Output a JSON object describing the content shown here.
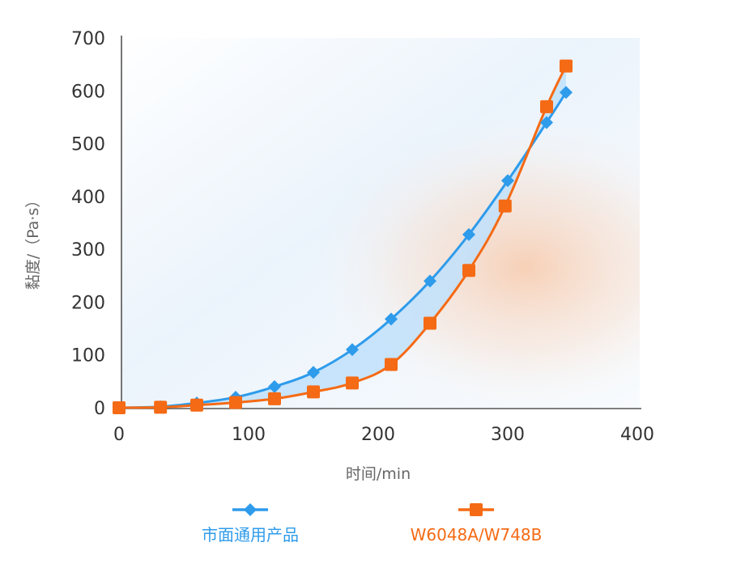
{
  "chart_data": {
    "type": "line",
    "xlabel": "时间/min",
    "ylabel": "黏度/（Pa·s）",
    "xlim": [
      0,
      400
    ],
    "ylim": [
      0,
      700
    ],
    "xticks": [
      0,
      100,
      200,
      300,
      400
    ],
    "yticks": [
      0,
      100,
      200,
      300,
      400,
      500,
      600,
      700
    ],
    "grid": false,
    "legend_position": "bottom",
    "series": [
      {
        "name": "市面通用产品",
        "color": "#2E9BEB",
        "marker": "diamond",
        "x": [
          0,
          32,
          60,
          90,
          120,
          150,
          180,
          210,
          240,
          270,
          300,
          330,
          345
        ],
        "y": [
          0,
          2,
          9,
          20,
          40,
          67,
          110,
          168,
          240,
          328,
          430,
          540,
          597
        ]
      },
      {
        "name": "W6048A/W748B",
        "color": "#F56A14",
        "marker": "square",
        "x": [
          0,
          32,
          60,
          90,
          120,
          150,
          180,
          210,
          240,
          270,
          298,
          330,
          345
        ],
        "y": [
          0,
          1,
          5,
          10,
          17,
          30,
          47,
          82,
          160,
          260,
          382,
          570,
          647
        ]
      }
    ]
  }
}
